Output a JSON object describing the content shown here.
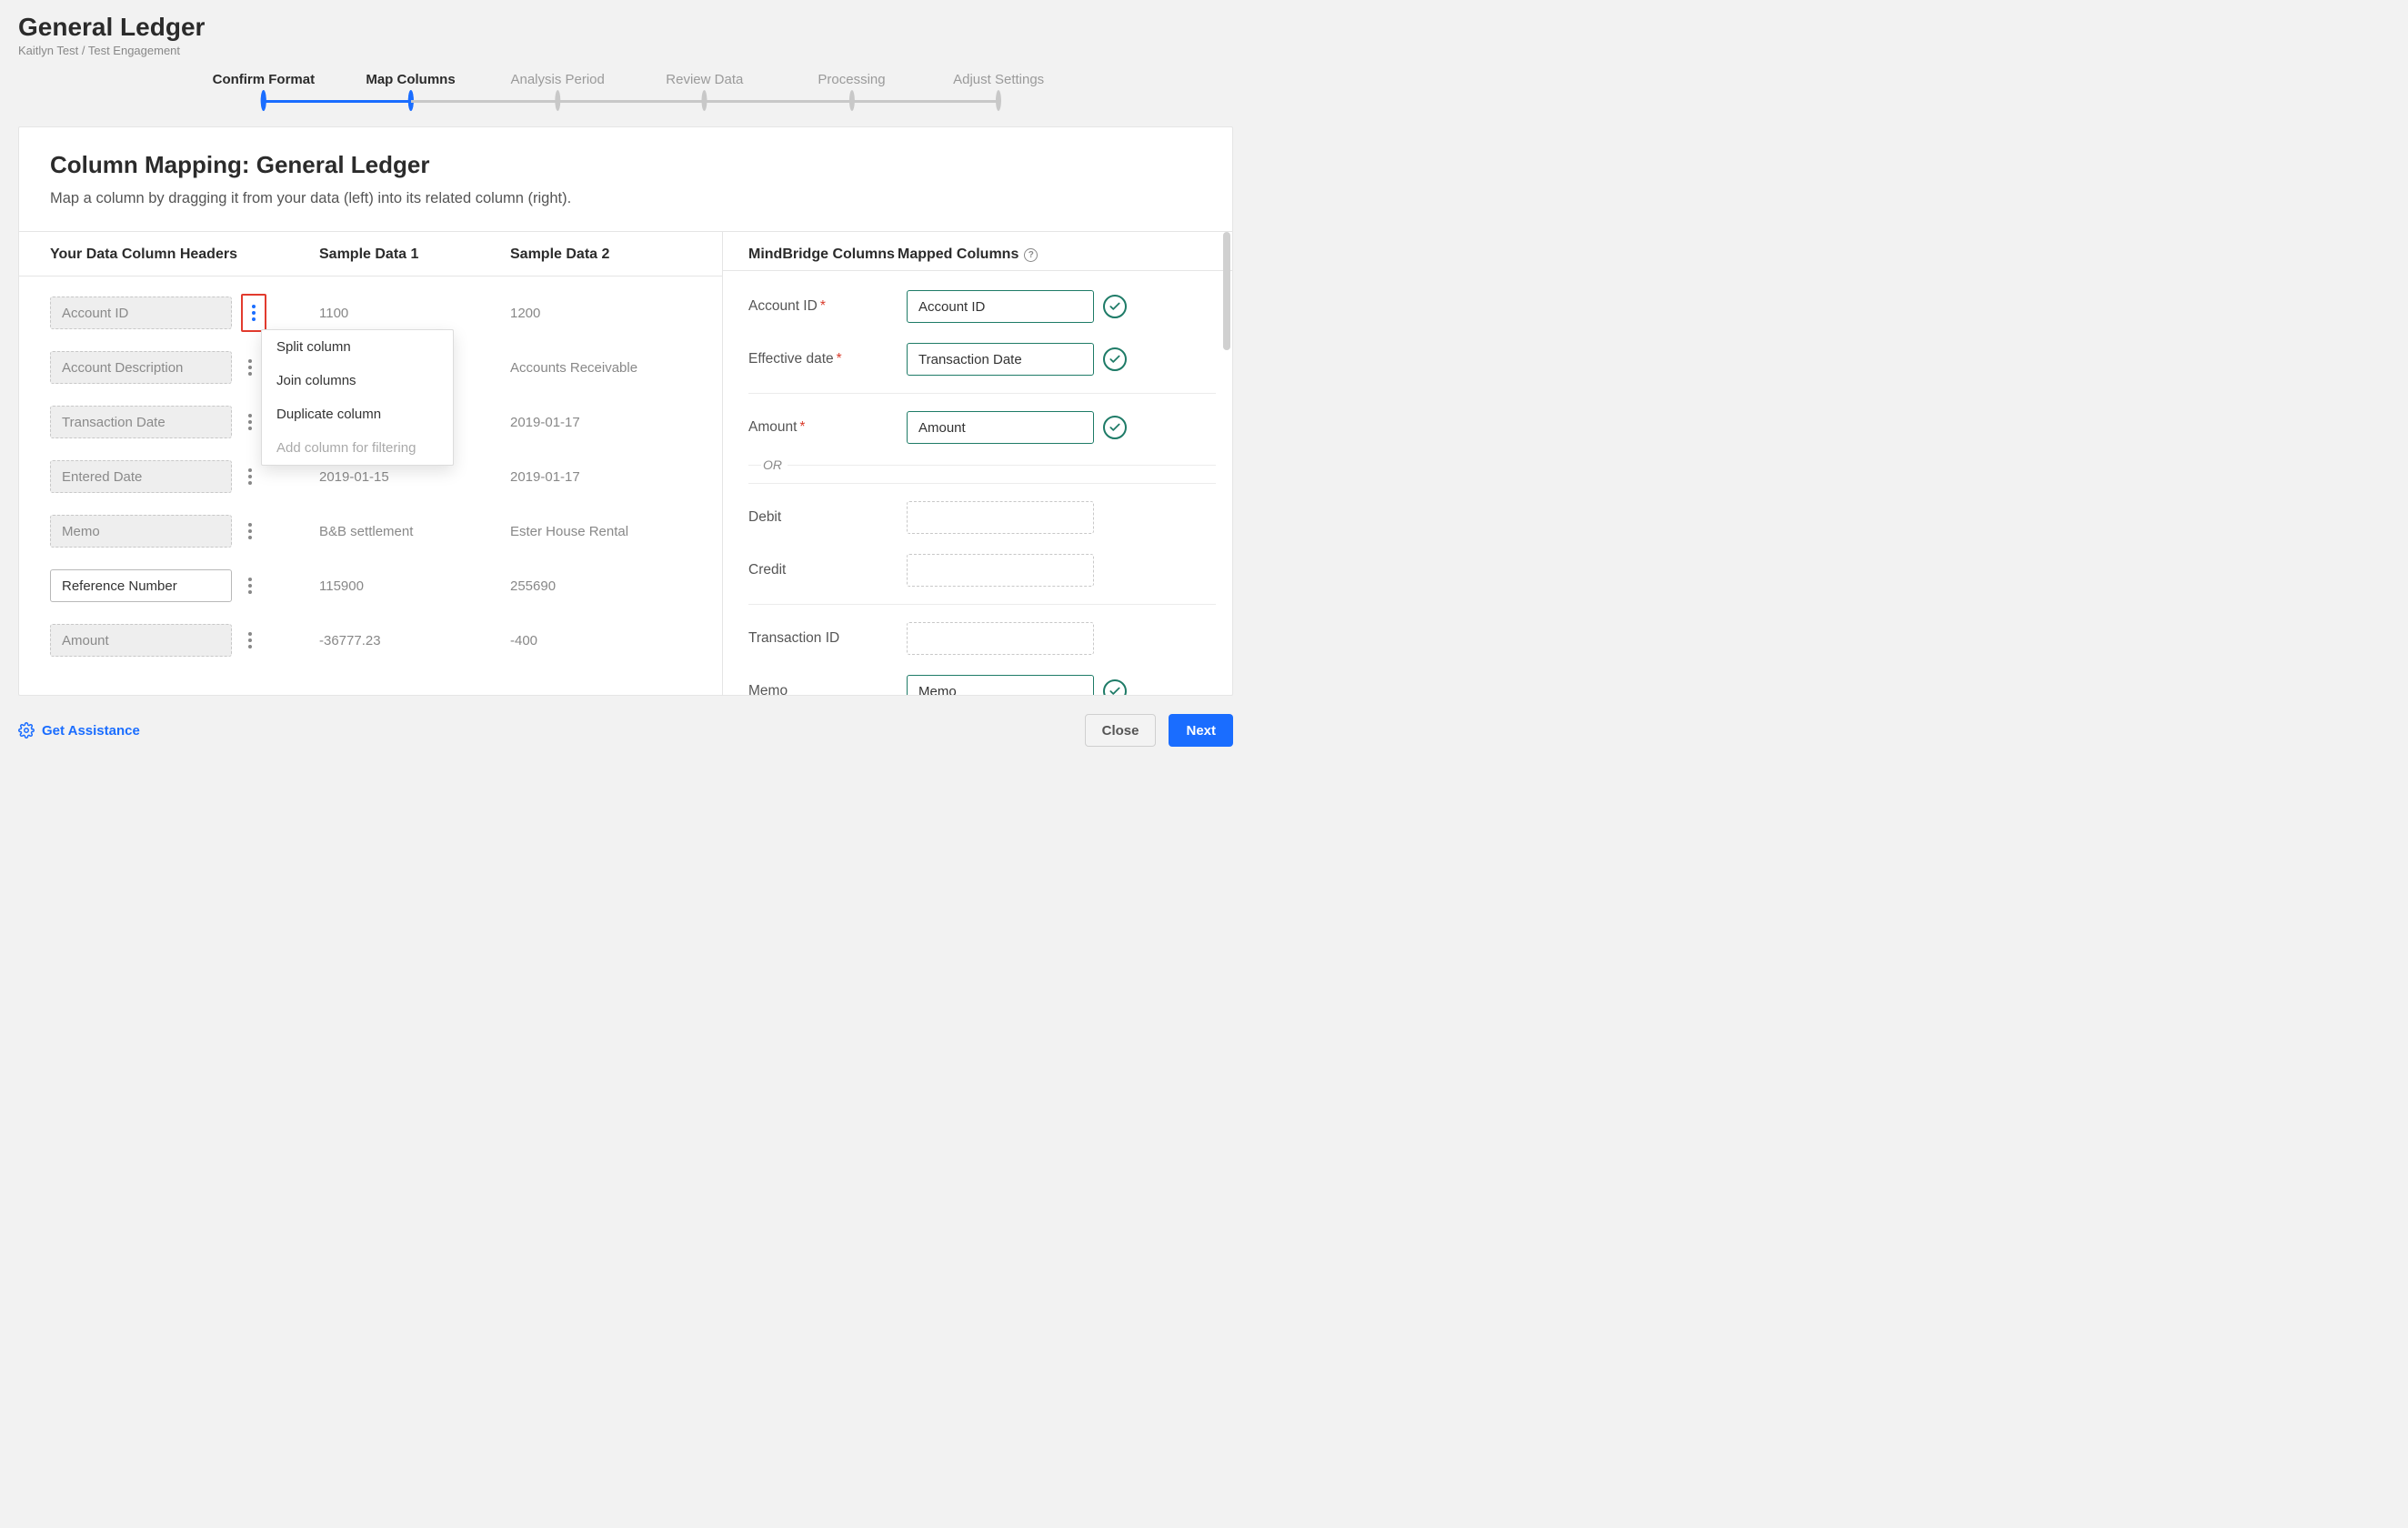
{
  "colors": {
    "accent_blue": "#1a6dff",
    "accent_green": "#1e7b67",
    "required_red": "#d93b2b",
    "highlight_red": "#e23b2e",
    "text_primary": "#2b2b2b",
    "text_muted": "#888888",
    "border_gray": "#e5e5e5",
    "page_bg": "#f2f2f2"
  },
  "header": {
    "title": "General Ledger",
    "breadcrumb": "Kaitlyn Test / Test Engagement"
  },
  "stepper": {
    "steps": [
      {
        "label": "Confirm Format",
        "state": "done",
        "pos_pct": 20.2
      },
      {
        "label": "Map Columns",
        "state": "active",
        "pos_pct": 32.3
      },
      {
        "label": "Analysis Period",
        "state": "pending",
        "pos_pct": 44.4
      },
      {
        "label": "Review Data",
        "state": "pending",
        "pos_pct": 56.5
      },
      {
        "label": "Processing",
        "state": "pending",
        "pos_pct": 68.6
      },
      {
        "label": "Adjust Settings",
        "state": "pending",
        "pos_pct": 80.7
      }
    ]
  },
  "card": {
    "title": "Column Mapping: General Ledger",
    "subtitle": "Map a column by dragging it from your data (left) into its related column (right)."
  },
  "left": {
    "headings": {
      "headers": "Your Data Column Headers",
      "sample1": "Sample Data 1",
      "sample2": "Sample Data 2"
    },
    "rows": [
      {
        "name": "Account ID",
        "sample1": "1100",
        "sample2": "1200",
        "solid": false,
        "kebab_highlight": true
      },
      {
        "name": "Account Description",
        "sample1": "",
        "sample2": "Accounts Receivable",
        "solid": false,
        "kebab_highlight": false
      },
      {
        "name": "Transaction Date",
        "sample1": "",
        "sample2": "2019-01-17",
        "solid": false,
        "kebab_highlight": false
      },
      {
        "name": "Entered Date",
        "sample1": "2019-01-15",
        "sample2": "2019-01-17",
        "solid": false,
        "kebab_highlight": false
      },
      {
        "name": "Memo",
        "sample1": "B&B settlement",
        "sample2": "Ester House Rental",
        "solid": false,
        "kebab_highlight": false
      },
      {
        "name": "Reference Number",
        "sample1": "115900",
        "sample2": "255690",
        "solid": true,
        "kebab_highlight": false
      },
      {
        "name": "Amount",
        "sample1": "-36777.23",
        "sample2": "-400",
        "solid": false,
        "kebab_highlight": false
      }
    ],
    "popup": {
      "items": [
        {
          "label": "Split column",
          "enabled": true
        },
        {
          "label": "Join columns",
          "enabled": true
        },
        {
          "label": "Duplicate column",
          "enabled": true
        },
        {
          "label": "Add column for filtering",
          "enabled": false
        }
      ]
    }
  },
  "right": {
    "headings": {
      "col1": "MindBridge Columns",
      "col2": "Mapped Columns"
    },
    "groups": [
      {
        "rows": [
          {
            "label": "Account ID",
            "required": true,
            "value": "Account ID",
            "checked": true
          },
          {
            "label": "Effective date",
            "required": true,
            "value": "Transaction Date",
            "checked": true
          }
        ]
      },
      {
        "rows": [
          {
            "label": "Amount",
            "required": true,
            "value": "Amount",
            "checked": true
          }
        ],
        "or_after": true
      },
      {
        "rows": [
          {
            "label": "Debit",
            "required": false,
            "value": "",
            "checked": false
          },
          {
            "label": "Credit",
            "required": false,
            "value": "",
            "checked": false
          }
        ]
      },
      {
        "rows": [
          {
            "label": "Transaction ID",
            "required": false,
            "value": "",
            "checked": false
          },
          {
            "label": "Memo",
            "required": false,
            "value": "Memo",
            "checked": true
          }
        ]
      }
    ],
    "or_label": "OR"
  },
  "footer": {
    "assist": "Get Assistance",
    "close": "Close",
    "next": "Next"
  }
}
